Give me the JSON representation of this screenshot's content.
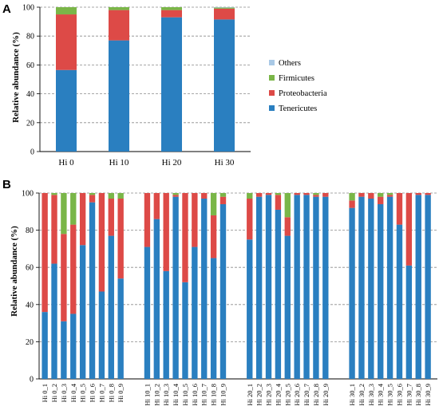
{
  "colors": {
    "Others": "#a9c9e6",
    "Firmicutes": "#7ab648",
    "Proteobacteria": "#dd4a47",
    "Tenericutes": "#2a7fc0"
  },
  "chart_data": [
    {
      "type": "bar",
      "stacked": true,
      "panel_label": "A",
      "ylabel": "Relative abundance (%)",
      "ylim": [
        0,
        100
      ],
      "yticks": [
        0,
        20,
        40,
        60,
        80,
        100
      ],
      "grid": true,
      "categories": [
        "Hi 0",
        "Hi 10",
        "Hi 20",
        "Hi 30"
      ],
      "legend_position": "right",
      "legend_labels": [
        "Others",
        "Firmicutes",
        "Proteobacteria",
        "Tenericutes"
      ],
      "series": [
        {
          "name": "Tenericutes",
          "values": [
            56.5,
            77,
            93,
            91.5
          ]
        },
        {
          "name": "Proteobacteria",
          "values": [
            38.5,
            21,
            5,
            7.5
          ]
        },
        {
          "name": "Firmicutes",
          "values": [
            5,
            2,
            2,
            0.7
          ]
        },
        {
          "name": "Others",
          "values": [
            0,
            0,
            0,
            0.3
          ]
        }
      ]
    },
    {
      "type": "bar",
      "stacked": true,
      "panel_label": "B",
      "ylabel": "Relative abundance (%)",
      "ylim": [
        0,
        100
      ],
      "yticks": [
        0,
        20,
        40,
        60,
        80,
        100
      ],
      "grid": true,
      "groups": [
        {
          "categories": [
            "Hi 0_1",
            "Hi 0_2",
            "Hi 0_3",
            "Hi 0_4",
            "Hi 0_5",
            "Hi 0_6",
            "Hi 0_7",
            "Hi 0_8",
            "Hi 0_9"
          ]
        },
        {
          "categories": [
            "Hi 10_1",
            "Hi 10_2",
            "Hi 10_3",
            "Hi 10_4",
            "Hi 10_5",
            "Hi 10_6",
            "Hi 10_7",
            "Hi 10_8",
            "Hi 10_9"
          ]
        },
        {
          "categories": [
            "Hi 20_1",
            "Hi 20_2",
            "Hi 20_3",
            "Hi 20_4",
            "Hi 20_5",
            "Hi 20_6",
            "Hi 20_7",
            "Hi 20_8",
            "Hi 20_9"
          ]
        },
        {
          "categories": [
            "Hi 30_1",
            "Hi 30_2",
            "Hi 30_3",
            "Hi 30_4",
            "Hi 30_5",
            "Hi 30_6",
            "Hi 30_7",
            "Hi 30_8",
            "Hi 30_9"
          ]
        }
      ],
      "series": [
        {
          "name": "Tenericutes",
          "values": [
            36,
            62,
            31,
            35,
            72,
            95,
            47,
            77,
            54,
            71,
            86,
            58,
            98,
            52,
            71,
            97,
            65,
            94,
            75,
            98,
            99,
            91,
            77,
            99,
            99,
            98,
            98,
            92,
            98,
            97,
            94,
            98,
            83,
            61,
            99,
            99
          ]
        },
        {
          "name": "Proteobacteria",
          "values": [
            64,
            37,
            47,
            48,
            28,
            4,
            53,
            20,
            43,
            29,
            14,
            42,
            1,
            48,
            29,
            3,
            23,
            4,
            22,
            2,
            1,
            8,
            10,
            1,
            1,
            1,
            2,
            4,
            2,
            3,
            4,
            1,
            17,
            39,
            1,
            1
          ]
        },
        {
          "name": "Firmicutes",
          "values": [
            0,
            1,
            22,
            17,
            0,
            1,
            0,
            3,
            3,
            0,
            0,
            0,
            1,
            0,
            0,
            0,
            12,
            2,
            3,
            0,
            0,
            1,
            13,
            0,
            0,
            1,
            0,
            4,
            0,
            0,
            2,
            1,
            0,
            0,
            0,
            0
          ]
        },
        {
          "name": "Others",
          "values": [
            0,
            0,
            0,
            0,
            0,
            0,
            0,
            0,
            0,
            0,
            0,
            0,
            0,
            0,
            0,
            0,
            0,
            0,
            0,
            0,
            0,
            0,
            0,
            0,
            0,
            0,
            0,
            0,
            0,
            0,
            0,
            0,
            0,
            0,
            0,
            0
          ]
        }
      ]
    }
  ]
}
